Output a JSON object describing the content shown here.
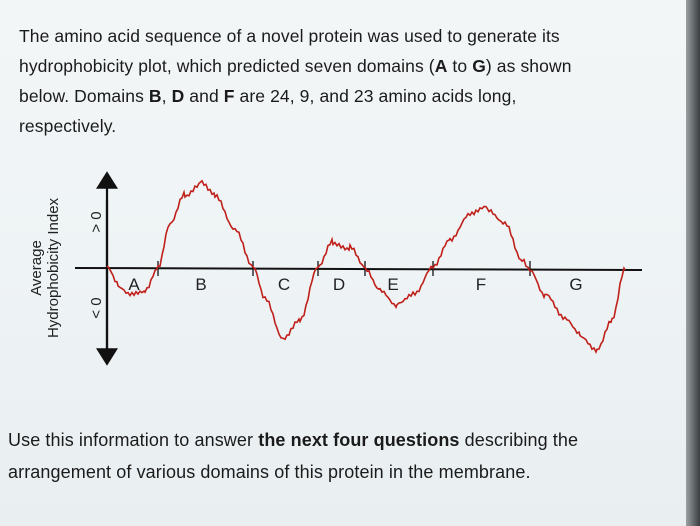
{
  "intro": {
    "line1": "The amino acid sequence of a novel protein was used to generate its",
    "line2": "hydrophobicity plot, which predicted seven domains (",
    "line2_a": "A",
    "line2_mid": " to ",
    "line2_g": "G",
    "line2_end": ") as shown",
    "line3_start": "below.  Domains ",
    "line3_b": "B",
    "line3_sep1": ", ",
    "line3_d": "D",
    "line3_and": " and ",
    "line3_f": "F",
    "line3_end": " are 24, 9, and 23 amino acids long,",
    "line4": "respectively."
  },
  "plot": {
    "ylabel_line1": "Average",
    "ylabel_line2": "Hydrophobicity Index",
    "y_pos_label": "> 0",
    "y_neg_label": "< 0",
    "domains": [
      "A",
      "B",
      "C",
      "D",
      "E",
      "F",
      "G"
    ],
    "line_color": "#c0201a"
  },
  "outro": {
    "line1_start": "Use this information to answer ",
    "line1_bold": "the next four questions",
    "line1_end": " describing the",
    "line2": "arrangement of various domains of this protein in the membrane."
  }
}
